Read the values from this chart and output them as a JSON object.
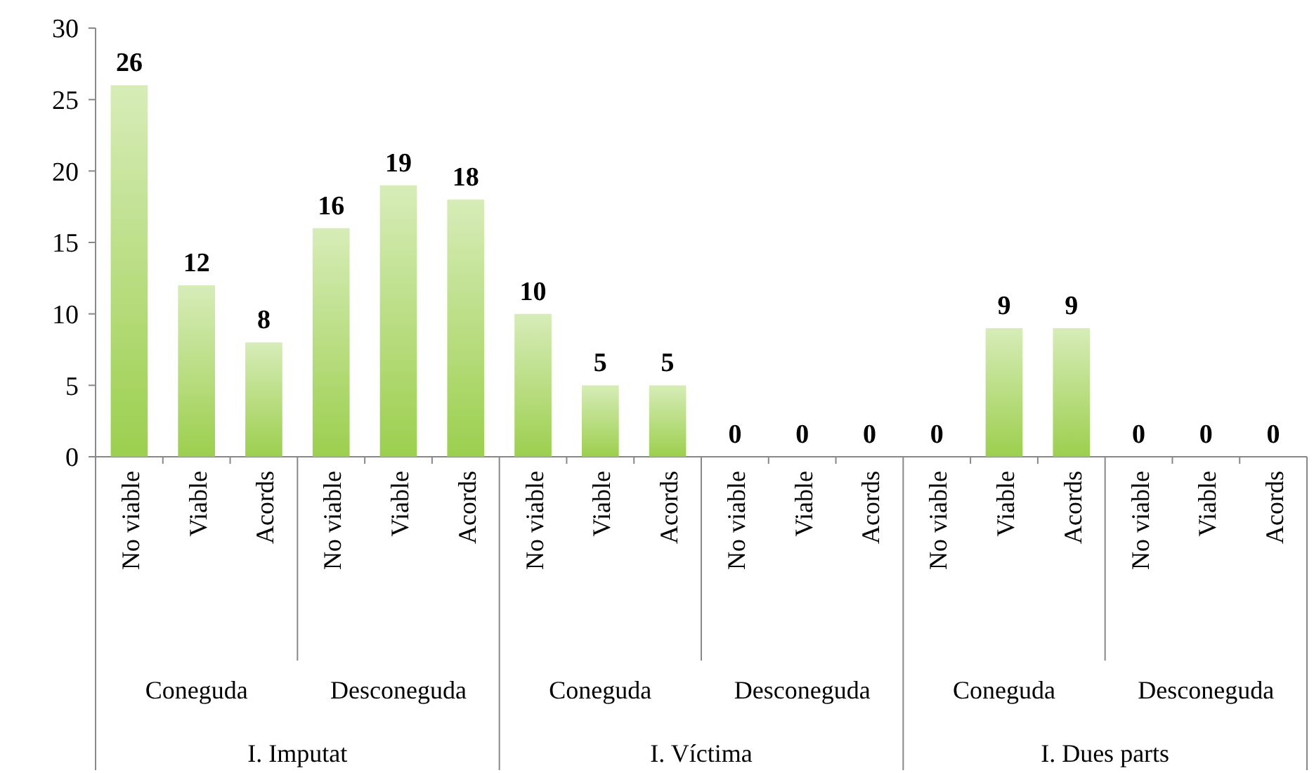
{
  "chart_data": {
    "type": "bar",
    "categories": [
      "No viable",
      "Viable",
      "Acords",
      "No viable",
      "Viable",
      "Acords",
      "No viable",
      "Viable",
      "Acords",
      "No viable",
      "Viable",
      "Acords",
      "No viable",
      "Viable",
      "Acords",
      "No viable",
      "Viable",
      "Acords"
    ],
    "values": [
      26,
      12,
      8,
      16,
      19,
      18,
      10,
      5,
      5,
      0,
      0,
      0,
      0,
      9,
      9,
      0,
      0,
      0
    ],
    "color": "#9ccf4e",
    "ylim": [
      0,
      30
    ],
    "yticks": [
      0,
      5,
      10,
      15,
      20,
      25,
      30
    ],
    "grid": false,
    "data_labels": true,
    "annotations": [
      "Coneguda",
      "Desconeguda",
      "Coneguda",
      "Desconeguda",
      "Coneguda",
      "Desconeguda",
      "I. Imputat",
      "I. Víctima",
      "I. Dues parts"
    ]
  }
}
